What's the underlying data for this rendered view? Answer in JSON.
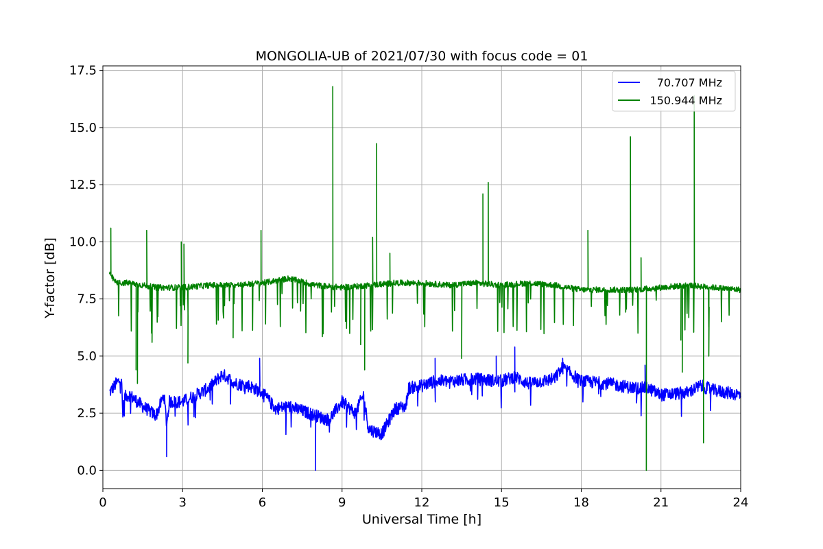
{
  "chart_data": {
    "type": "line",
    "title": "MONGOLIA-UB of 2021/07/30 with focus code = 01",
    "xlabel": "Universal Time [h]",
    "ylabel": "Y-factor [dB]",
    "xlim": [
      0,
      24
    ],
    "ylim": [
      -0.8,
      17.7
    ],
    "x_ticks": [
      0,
      3,
      6,
      9,
      12,
      15,
      18,
      21,
      24
    ],
    "x_tick_labels": [
      "0",
      "3",
      "6",
      "9",
      "12",
      "15",
      "18",
      "21",
      "24"
    ],
    "y_ticks": [
      0.0,
      2.5,
      5.0,
      7.5,
      10.0,
      12.5,
      15.0,
      17.5
    ],
    "y_tick_labels": [
      "0.0",
      "2.5",
      "5.0",
      "7.5",
      "10.0",
      "12.5",
      "15.0",
      "17.5"
    ],
    "grid": true,
    "legend_position": "top-right",
    "series": [
      {
        "name": "70.707 MHz",
        "color": "#0000ff",
        "x": [
          0.25,
          0.5,
          0.7,
          0.75,
          0.8,
          1.0,
          1.5,
          2.0,
          2.3,
          2.4,
          2.5,
          3.0,
          3.5,
          4.0,
          4.5,
          5.0,
          5.5,
          6.0,
          6.5,
          7.0,
          7.5,
          8.0,
          8.5,
          9.0,
          9.5,
          9.8,
          10.0,
          10.5,
          11.0,
          11.4,
          11.5,
          12.0,
          12.5,
          13.0,
          14.0,
          15.0,
          15.5,
          16.0,
          17.0,
          17.3,
          18.0,
          19.0,
          20.0,
          20.5,
          21.0,
          22.0,
          22.5,
          23.0,
          24.0
        ],
        "y": [
          3.4,
          3.8,
          4.0,
          2.3,
          3.2,
          3.3,
          2.8,
          2.4,
          3.3,
          2.0,
          3.0,
          3.0,
          3.3,
          3.6,
          4.2,
          3.8,
          3.7,
          3.4,
          2.7,
          2.8,
          2.6,
          2.4,
          2.2,
          3.0,
          2.5,
          3.3,
          1.8,
          1.6,
          2.7,
          2.8,
          3.6,
          3.7,
          3.9,
          3.9,
          4.0,
          3.9,
          4.1,
          3.8,
          4.0,
          4.5,
          3.9,
          3.8,
          3.6,
          3.6,
          3.3,
          3.4,
          3.7,
          3.5,
          3.3
        ],
        "spikes": [
          [
            2.4,
            0.6
          ],
          [
            5.9,
            4.9
          ],
          [
            8.0,
            0.0
          ],
          [
            12.5,
            4.9
          ],
          [
            14.8,
            5.0
          ],
          [
            15.5,
            5.4
          ],
          [
            17.3,
            4.9
          ],
          [
            20.4,
            4.6
          ]
        ]
      },
      {
        "name": "150.944 MHz",
        "color": "#008000",
        "x": [
          0.25,
          0.5,
          1.0,
          1.5,
          2.0,
          3.0,
          4.0,
          5.0,
          6.0,
          6.5,
          7.0,
          8.0,
          9.0,
          10.0,
          11.0,
          12.0,
          13.0,
          14.0,
          15.0,
          16.0,
          17.0,
          18.0,
          19.0,
          20.0,
          21.0,
          22.0,
          23.0,
          24.0
        ],
        "y": [
          8.6,
          8.2,
          8.2,
          8.1,
          8.0,
          8.0,
          8.1,
          8.1,
          8.2,
          8.3,
          8.4,
          8.1,
          8.0,
          8.1,
          8.2,
          8.2,
          8.1,
          8.2,
          8.1,
          8.2,
          8.1,
          7.9,
          7.9,
          7.9,
          8.0,
          8.1,
          8.0,
          7.9
        ],
        "spikes": [
          [
            0.3,
            10.6
          ],
          [
            1.25,
            4.4
          ],
          [
            1.3,
            3.8
          ],
          [
            1.65,
            10.5
          ],
          [
            1.85,
            5.6
          ],
          [
            2.95,
            10.0
          ],
          [
            3.05,
            9.9
          ],
          [
            3.2,
            4.7
          ],
          [
            4.9,
            5.8
          ],
          [
            5.95,
            10.5
          ],
          [
            8.65,
            16.8
          ],
          [
            9.7,
            5.5
          ],
          [
            9.85,
            4.4
          ],
          [
            10.15,
            10.2
          ],
          [
            10.3,
            14.3
          ],
          [
            10.8,
            9.5
          ],
          [
            13.5,
            4.9
          ],
          [
            14.3,
            12.1
          ],
          [
            14.5,
            12.6
          ],
          [
            18.25,
            10.5
          ],
          [
            19.85,
            14.6
          ],
          [
            20.25,
            9.3
          ],
          [
            20.45,
            0.0
          ],
          [
            21.75,
            5.7
          ],
          [
            21.8,
            4.3
          ],
          [
            22.25,
            16.4
          ],
          [
            22.6,
            1.2
          ],
          [
            22.8,
            5.0
          ]
        ]
      }
    ]
  }
}
